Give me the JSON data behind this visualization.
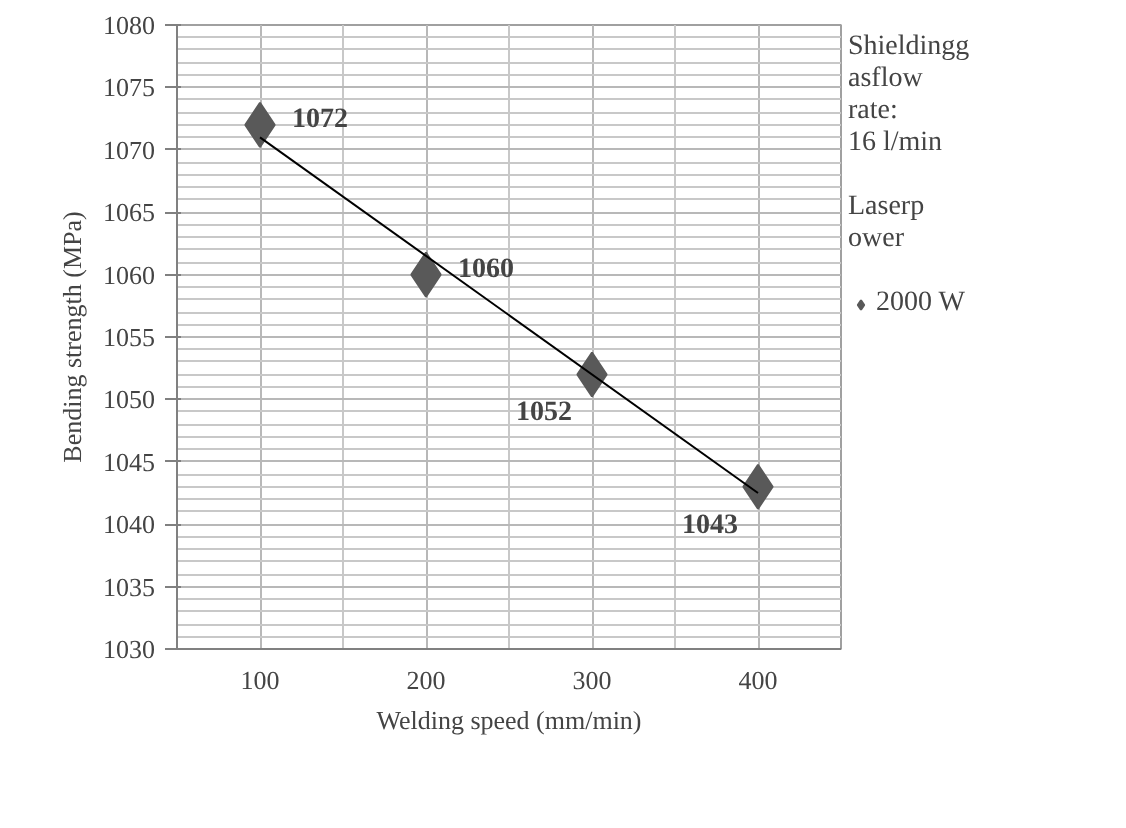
{
  "chart_data": {
    "type": "scatter",
    "xlabel": "Welding speed (mm/min)",
    "ylabel": "Bending strength (MPa)",
    "x": [
      100,
      200,
      300,
      400
    ],
    "series": [
      {
        "name": "2000 W",
        "color": "#595959",
        "values": [
          1072,
          1060,
          1052,
          1043
        ],
        "marker": "diamond",
        "value_labels": [
          "1072",
          "1060",
          "1052",
          "1043"
        ]
      },
      {
        "type": "line",
        "color": "#000000",
        "x": [
          100,
          400
        ],
        "values": [
          1071.0,
          1042.5
        ]
      }
    ],
    "xlim": [
      50,
      450
    ],
    "xticks": [
      100,
      200,
      300,
      400
    ],
    "ylim": [
      1030,
      1080
    ],
    "yticks": [
      1030,
      1035,
      1040,
      1045,
      1050,
      1055,
      1060,
      1065,
      1070,
      1075,
      1080
    ],
    "grid": true,
    "legend": "right",
    "legend_title": "Laserp\nower",
    "annotations": [
      "Shieldingg\nasflow\nrate:\n16 l/min"
    ]
  }
}
